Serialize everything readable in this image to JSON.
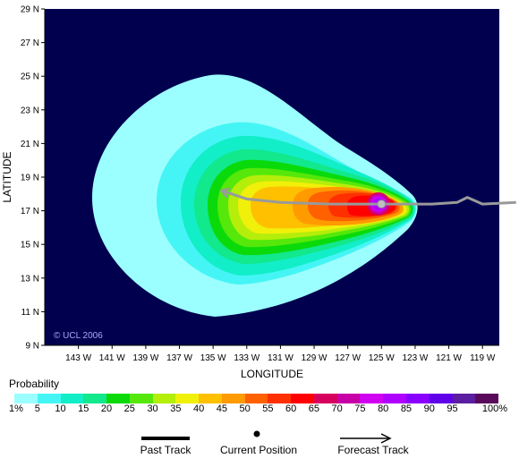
{
  "map": {
    "x_axis_title": "LONGITUDE",
    "y_axis_title": "LATITUDE",
    "copyright": "© UCL 2006",
    "background_color": "#00004f",
    "x_ticks": [
      "143 W",
      "141 W",
      "139 W",
      "137 W",
      "135 W",
      "133 W",
      "131 W",
      "129 W",
      "127 W",
      "125 W",
      "123 W",
      "121 W",
      "119 W"
    ],
    "y_ticks": [
      "29 N",
      "27 N",
      "25 N",
      "23 N",
      "21 N",
      "19 N",
      "17 N",
      "15 N",
      "13 N",
      "11 N",
      "9 N"
    ],
    "current_position": {
      "lon": -125.0,
      "lat": 17.4
    },
    "past_track": [
      [
        -125.0,
        17.4
      ],
      [
        -122.0,
        17.4
      ],
      [
        -120.5,
        17.5
      ],
      [
        -119.9,
        17.8
      ],
      [
        -119.0,
        17.4
      ],
      [
        -117.0,
        17.5
      ]
    ],
    "forecast_track": [
      [
        -125.0,
        17.4
      ],
      [
        -128.0,
        17.4
      ],
      [
        -131.0,
        17.5
      ],
      [
        -133.0,
        17.7
      ],
      [
        -134.5,
        18.2
      ]
    ],
    "track_color": "#9a9a9a"
  },
  "legend": {
    "title": "Probability",
    "colors": [
      "#9cffff",
      "#45f5f5",
      "#12eec8",
      "#12e88c",
      "#0ada0a",
      "#55e80a",
      "#b4ee0a",
      "#f0f00a",
      "#ffc000",
      "#ff9a00",
      "#ff6000",
      "#ff3000",
      "#ff0000",
      "#d7005f",
      "#c800a8",
      "#d000f0",
      "#b000ff",
      "#8a00ff",
      "#6000e8",
      "#5c1ea0",
      "#5a0a5a"
    ],
    "labels": [
      "1%",
      "5",
      "10",
      "15",
      "20",
      "25",
      "30",
      "35",
      "40",
      "45",
      "50",
      "55",
      "60",
      "65",
      "70",
      "75",
      "80",
      "85",
      "90",
      "95",
      "100%"
    ]
  },
  "track_key": {
    "past": "Past Track",
    "current": "Current Position",
    "forecast": "Forecast Track"
  }
}
